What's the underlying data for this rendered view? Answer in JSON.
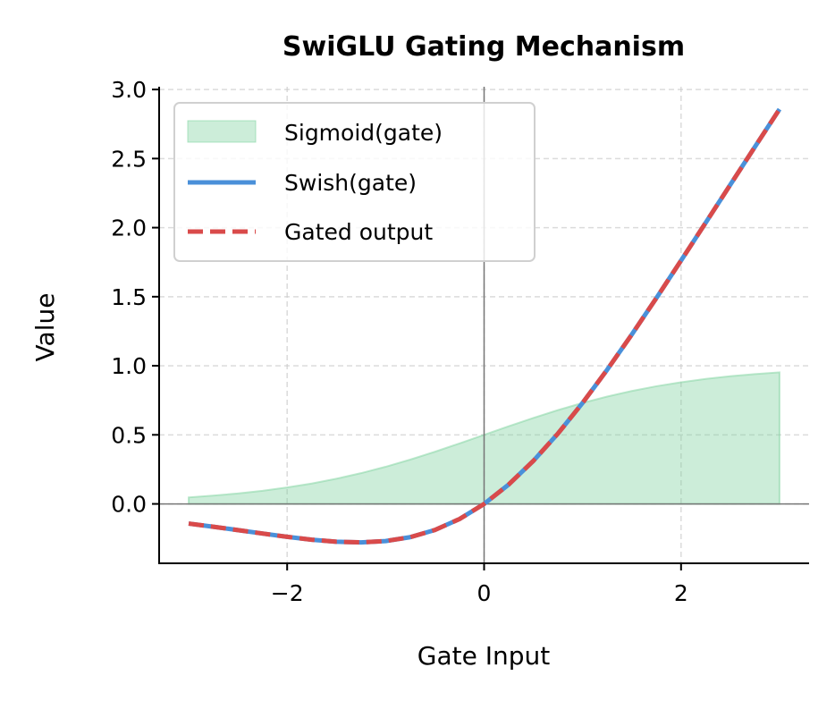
{
  "chart_data": {
    "type": "line",
    "title": "SwiGLU Gating Mechanism",
    "xlabel": "Gate Input",
    "ylabel": "Value",
    "xlim": [
      -3.3,
      3.3
    ],
    "ylim": [
      -0.43,
      3.02
    ],
    "xticks": [
      -2,
      0,
      2
    ],
    "xtick_labels": [
      "−2",
      "0",
      "2"
    ],
    "yticks": [
      0.0,
      0.5,
      1.0,
      1.5,
      2.0,
      2.5,
      3.0
    ],
    "ytick_labels": [
      "0.0",
      "0.5",
      "1.0",
      "1.5",
      "2.0",
      "2.5",
      "3.0"
    ],
    "grid": true,
    "legend_position": "top-left",
    "x": [
      -3,
      -2.75,
      -2.5,
      -2.25,
      -2,
      -1.75,
      -1.5,
      -1.25,
      -1,
      -0.75,
      -0.5,
      -0.25,
      0,
      0.25,
      0.5,
      0.75,
      1,
      1.25,
      1.5,
      1.75,
      2,
      2.25,
      2.5,
      2.75,
      3
    ],
    "series": [
      {
        "name": "Sigmoid(gate)",
        "style": "filled-area",
        "color": "#7fd3a0",
        "values": [
          0.0474,
          0.0601,
          0.0759,
          0.0953,
          0.1192,
          0.148,
          0.1824,
          0.2227,
          0.2689,
          0.3208,
          0.3775,
          0.4378,
          0.5,
          0.5622,
          0.6225,
          0.6792,
          0.7311,
          0.7773,
          0.8176,
          0.852,
          0.8808,
          0.9047,
          0.9241,
          0.9399,
          0.9526
        ]
      },
      {
        "name": "Swish(gate)",
        "style": "solid",
        "color": "#4a90d9",
        "values": [
          -0.1423,
          -0.1652,
          -0.1897,
          -0.2145,
          -0.2384,
          -0.2591,
          -0.2736,
          -0.2784,
          -0.2689,
          -0.2406,
          -0.1888,
          -0.1095,
          0,
          0.1405,
          0.3112,
          0.5094,
          0.7311,
          0.9716,
          1.2264,
          1.4909,
          1.7616,
          2.0355,
          2.3103,
          2.5848,
          2.8577
        ]
      },
      {
        "name": "Gated output",
        "style": "dashed",
        "color": "#d94a4a",
        "values": [
          -0.1423,
          -0.1652,
          -0.1897,
          -0.2145,
          -0.2384,
          -0.2591,
          -0.2736,
          -0.2784,
          -0.2689,
          -0.2406,
          -0.1888,
          -0.1095,
          0,
          0.1405,
          0.3112,
          0.5094,
          0.7311,
          0.9716,
          1.2264,
          1.4909,
          1.7616,
          2.0355,
          2.3103,
          2.5848,
          2.8577
        ]
      }
    ]
  }
}
